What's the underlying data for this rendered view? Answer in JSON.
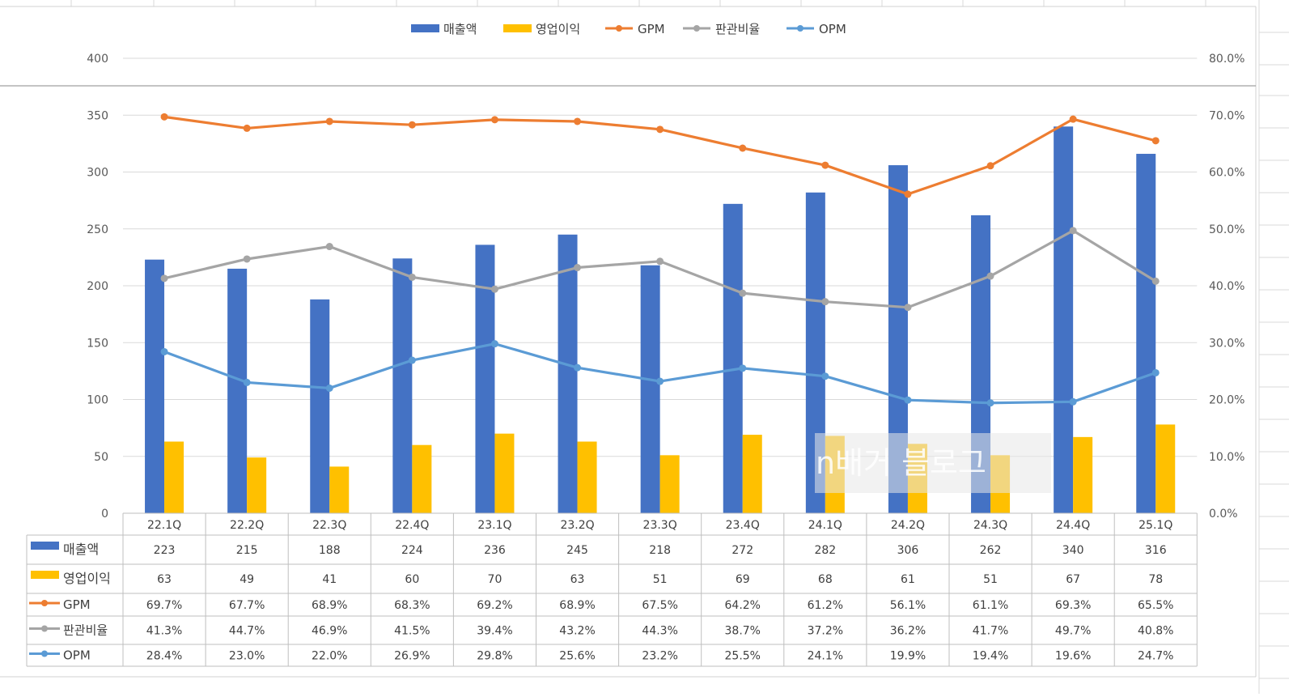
{
  "chart_data": {
    "type": "bar",
    "categories": [
      "22.1Q",
      "22.2Q",
      "22.3Q",
      "22.4Q",
      "23.1Q",
      "23.2Q",
      "23.3Q",
      "23.4Q",
      "24.1Q",
      "24.2Q",
      "24.3Q",
      "24.4Q",
      "25.1Q"
    ],
    "series": [
      {
        "name": "매출액",
        "kind": "bar",
        "axis": "left",
        "color": "#4472C4",
        "values": [
          223,
          215,
          188,
          224,
          236,
          245,
          218,
          272,
          282,
          306,
          262,
          340,
          316
        ]
      },
      {
        "name": "영업이익",
        "kind": "bar",
        "axis": "left",
        "color": "#FFC000",
        "values": [
          63,
          49,
          41,
          60,
          70,
          63,
          51,
          69,
          68,
          61,
          51,
          67,
          78
        ]
      },
      {
        "name": "GPM",
        "kind": "line",
        "axis": "right",
        "color": "#ED7D31",
        "values": [
          69.7,
          67.7,
          68.9,
          68.3,
          69.2,
          68.9,
          67.5,
          64.2,
          61.2,
          56.1,
          61.1,
          69.3,
          65.5
        ]
      },
      {
        "name": "판관비율",
        "kind": "line",
        "axis": "right",
        "color": "#A5A5A5",
        "values": [
          41.3,
          44.7,
          46.9,
          41.5,
          39.4,
          43.2,
          44.3,
          38.7,
          37.2,
          36.2,
          41.7,
          49.7,
          40.8
        ]
      },
      {
        "name": "OPM",
        "kind": "line",
        "axis": "right",
        "color": "#5B9BD5",
        "values": [
          28.4,
          23.0,
          22.0,
          26.9,
          29.8,
          25.6,
          23.2,
          25.5,
          24.1,
          19.9,
          19.4,
          19.6,
          24.7
        ]
      }
    ],
    "table_rows": [
      [
        "223",
        "215",
        "188",
        "224",
        "236",
        "245",
        "218",
        "272",
        "282",
        "306",
        "262",
        "340",
        "316"
      ],
      [
        "63",
        "49",
        "41",
        "60",
        "70",
        "63",
        "51",
        "69",
        "68",
        "61",
        "51",
        "67",
        "78"
      ],
      [
        "69.7%",
        "67.7%",
        "68.9%",
        "68.3%",
        "69.2%",
        "68.9%",
        "67.5%",
        "64.2%",
        "61.2%",
        "56.1%",
        "61.1%",
        "69.3%",
        "65.5%"
      ],
      [
        "41.3%",
        "44.7%",
        "46.9%",
        "41.5%",
        "39.4%",
        "43.2%",
        "44.3%",
        "38.7%",
        "37.2%",
        "36.2%",
        "41.7%",
        "49.7%",
        "40.8%"
      ],
      [
        "28.4%",
        "23.0%",
        "22.0%",
        "26.9%",
        "29.8%",
        "25.6%",
        "23.2%",
        "25.5%",
        "24.1%",
        "19.9%",
        "19.4%",
        "19.6%",
        "24.7%"
      ]
    ],
    "y_left": {
      "min": 0,
      "max": 400,
      "step": 50,
      "ticks": [
        "0",
        "50",
        "100",
        "150",
        "200",
        "250",
        "300",
        "350",
        "400"
      ]
    },
    "y_right": {
      "min": 0,
      "max": 80,
      "step": 10,
      "ticks": [
        "0.0%",
        "10.0%",
        "20.0%",
        "30.0%",
        "40.0%",
        "50.0%",
        "60.0%",
        "70.0%",
        "80.0%"
      ]
    },
    "legend_position": "top-center",
    "grid": true
  },
  "watermark_text": "n배거 블로그"
}
